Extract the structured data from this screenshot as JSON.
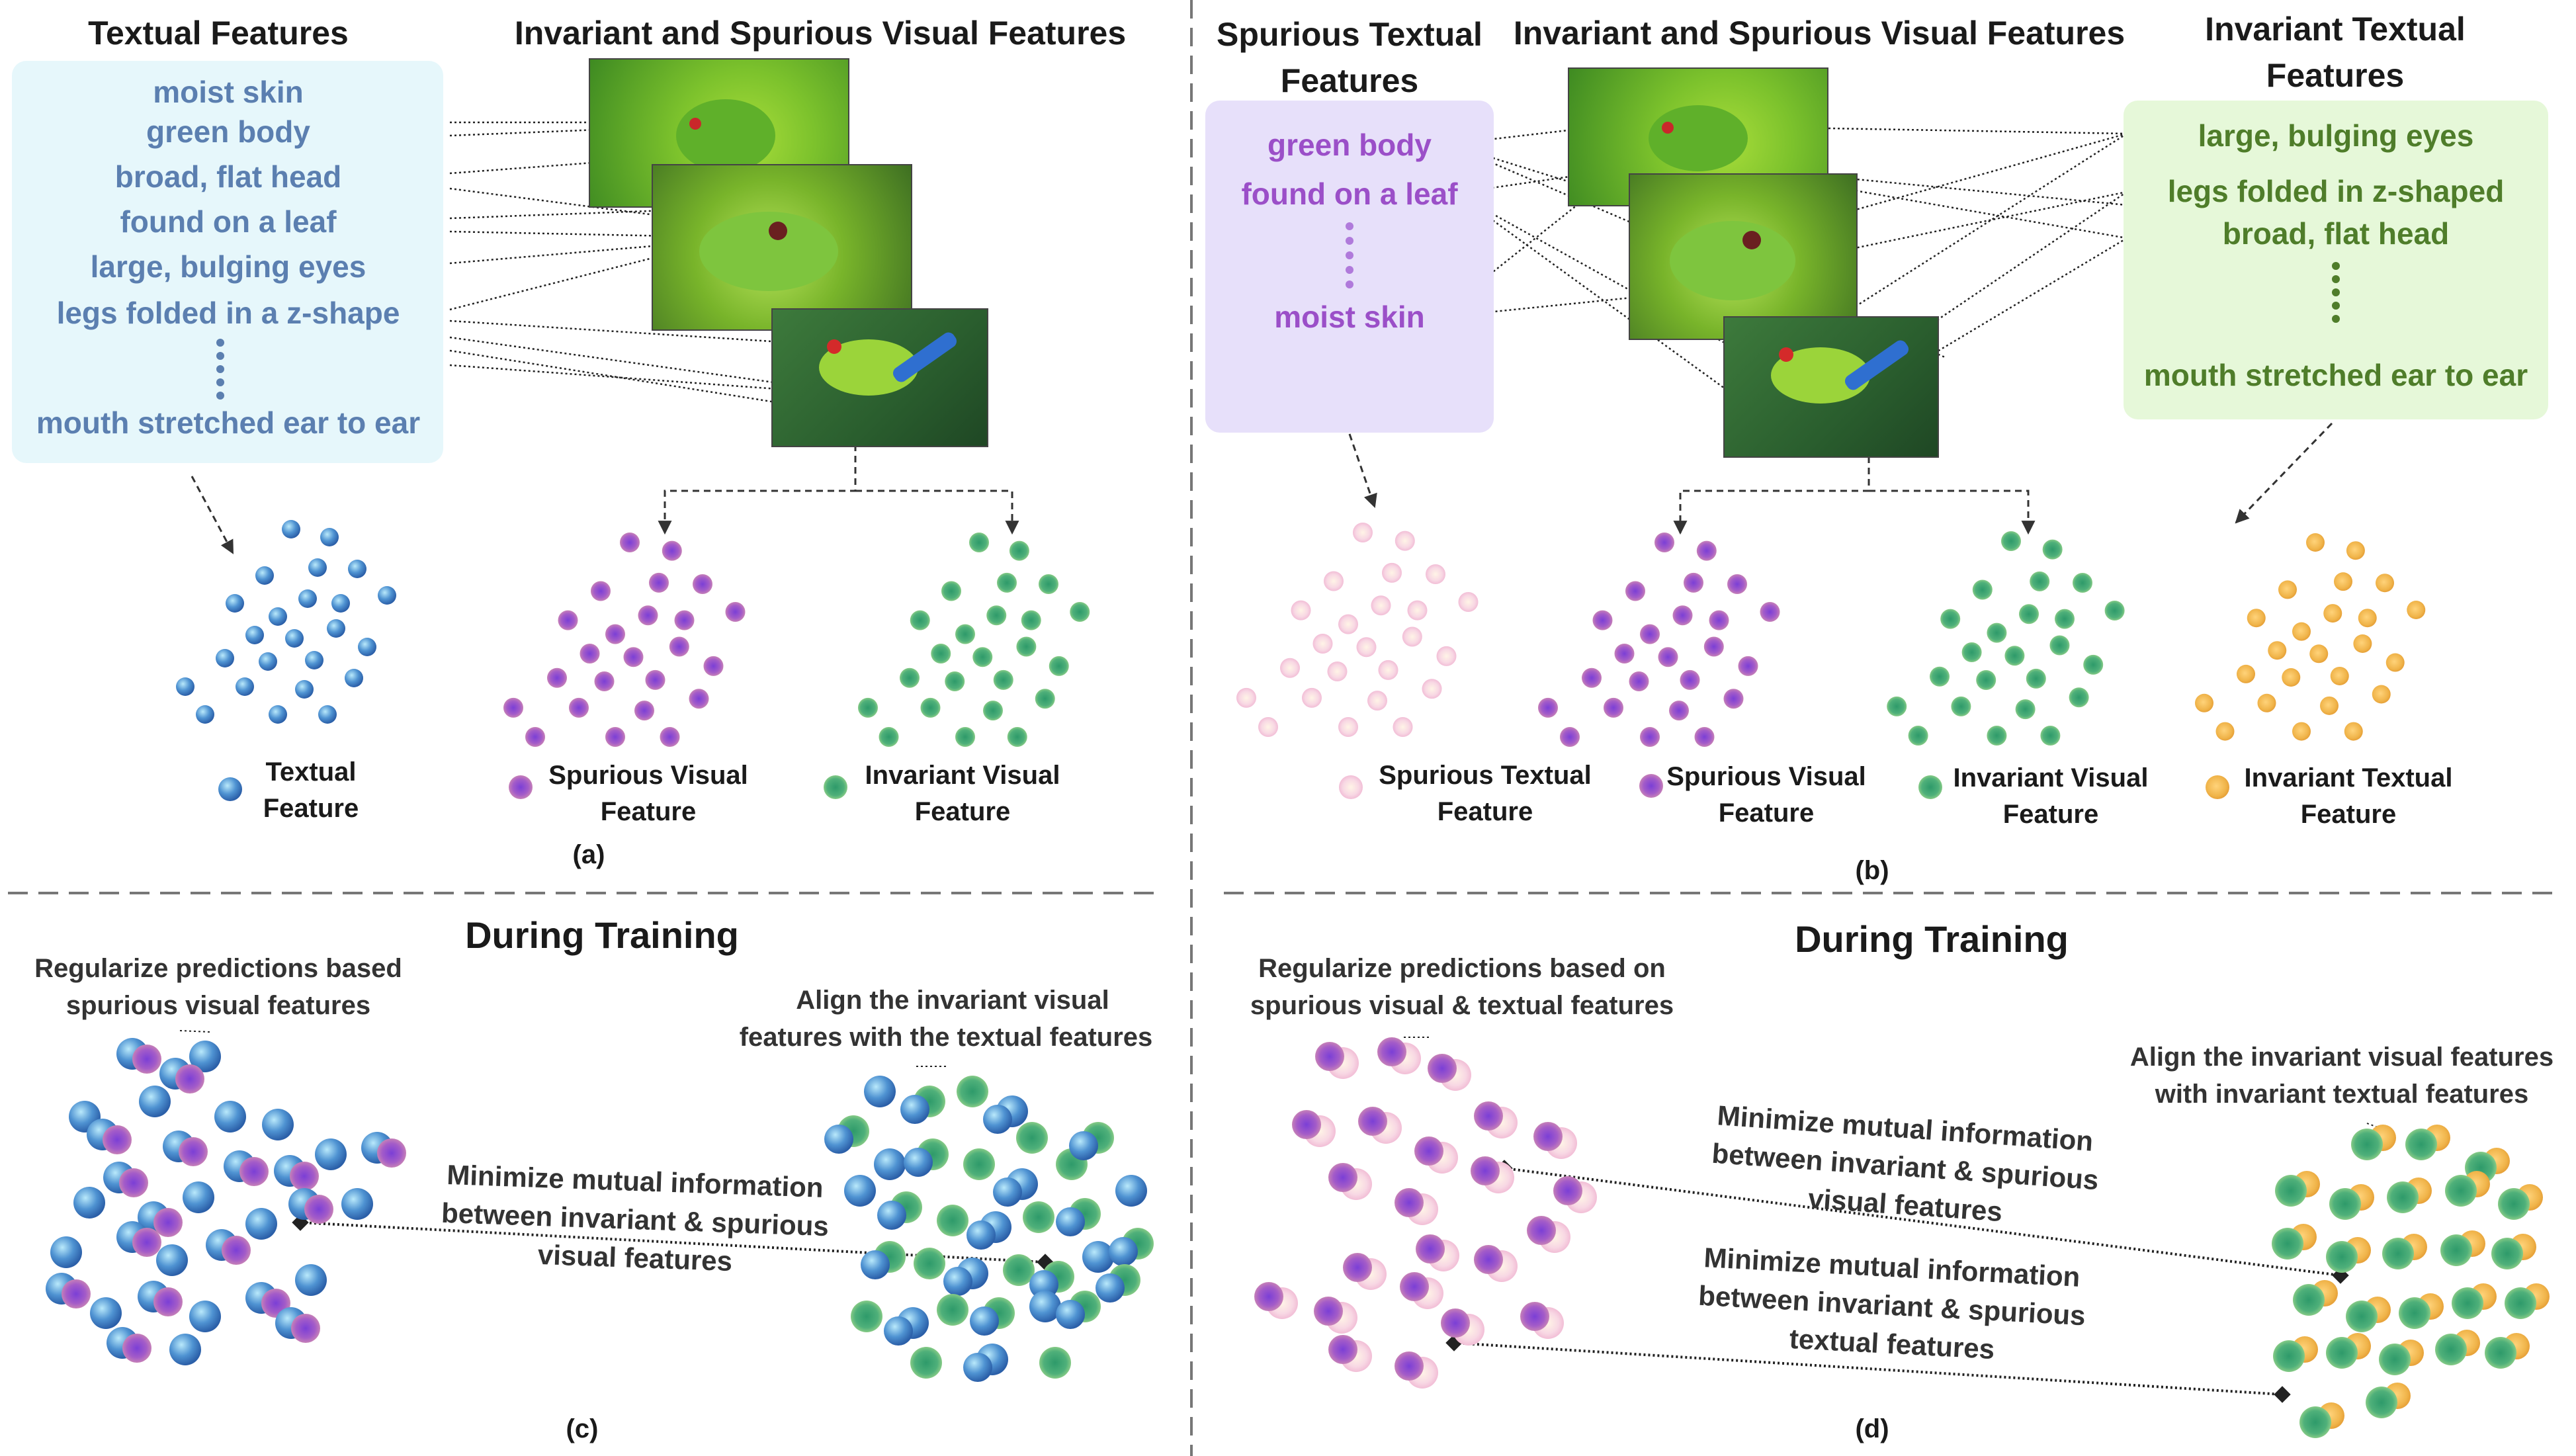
{
  "colors": {
    "text_blue": "#5b7fb0",
    "text_purple": "#9b4fc8",
    "text_green": "#4f7d2a",
    "panel_blue": "#e6f7fb",
    "panel_purple": "#e7e0fa",
    "panel_green": "#e6f8d9",
    "dot_blue": "#4f93d2",
    "dot_purple": "#a45cc8",
    "dot_green": "#4fb07a",
    "dot_pink": "#f4c6dc",
    "dot_orange": "#f0b44a"
  },
  "panel_a": {
    "title_textual": "Textual Features",
    "title_visual": "Invariant and Spurious Visual Features",
    "textual_features": [
      "moist skin",
      "green body",
      "broad, flat head",
      "found on a leaf",
      "large, bulging eyes",
      "legs folded in a z-shape",
      "mouth stretched ear to ear"
    ],
    "legend": {
      "textual": [
        "Textual",
        "Feature"
      ],
      "spurious_visual": [
        "Spurious Visual",
        "Feature"
      ],
      "invariant_visual": [
        "Invariant Visual",
        "Feature"
      ]
    },
    "caption": "(a)"
  },
  "panel_b": {
    "title_spurious_textual": [
      "Spurious Textual",
      "Features"
    ],
    "title_visual": "Invariant and Spurious Visual Features",
    "title_invariant_textual": [
      "Invariant Textual",
      "Features"
    ],
    "spurious_textual_features": [
      "green body",
      "found on a leaf",
      "moist skin"
    ],
    "invariant_textual_features": [
      "large, bulging eyes",
      "legs folded in z-shaped",
      "broad, flat head",
      "mouth stretched ear to ear"
    ],
    "legend": {
      "spurious_textual": [
        "Spurious Textual",
        "Feature"
      ],
      "spurious_visual": [
        "Spurious Visual",
        "Feature"
      ],
      "invariant_visual": [
        "Invariant Visual",
        "Feature"
      ],
      "invariant_textual": [
        "Invariant Textual",
        "Feature"
      ]
    },
    "caption": "(b)"
  },
  "panel_c": {
    "title": "During Training",
    "note_regularize": [
      "Regularize predictions based",
      "spurious visual features"
    ],
    "note_align": [
      "Align the invariant  visual",
      "features with the textual features"
    ],
    "note_mi": [
      "Minimize mutual information",
      "between invariant & spurious",
      "visual features"
    ],
    "caption": "(c)"
  },
  "panel_d": {
    "title": "During Training",
    "note_regularize": [
      "Regularize predictions based on",
      "spurious visual & textual features"
    ],
    "note_align": [
      "Align the invariant  visual features",
      "with invariant textual features"
    ],
    "note_mi_visual": [
      "Minimize mutual information",
      "between invariant & spurious",
      "visual features"
    ],
    "note_mi_textual": [
      "Minimize mutual information",
      "between invariant & spurious",
      "textual features"
    ],
    "caption": "(d)"
  }
}
